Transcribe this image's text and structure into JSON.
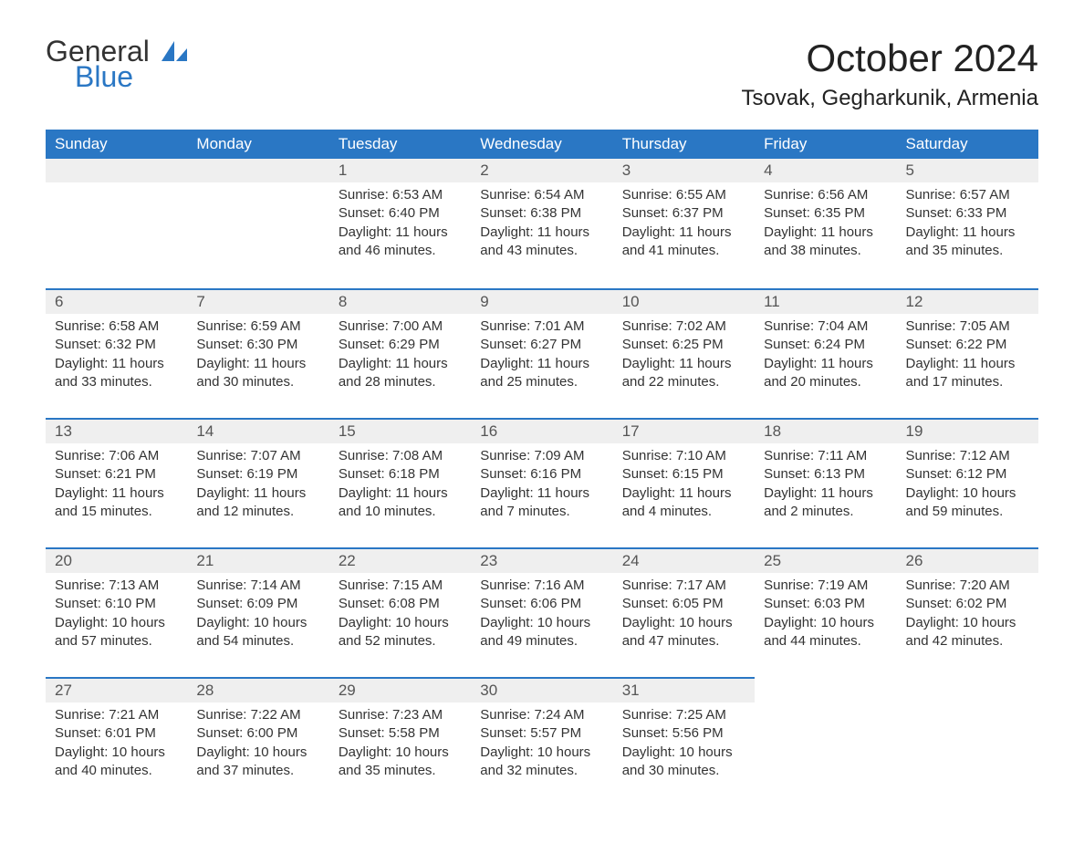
{
  "logo": {
    "text1": "General",
    "text2": "Blue",
    "icon_color": "#2a77c4"
  },
  "title": "October 2024",
  "location": "Tsovak, Gegharkunik, Armenia",
  "colors": {
    "header_bg": "#2a77c4",
    "header_fg": "#ffffff",
    "daynum_bg": "#efefef",
    "row_border": "#2a77c4",
    "body_fg": "#333333",
    "page_bg": "#ffffff"
  },
  "weekdays": [
    "Sunday",
    "Monday",
    "Tuesday",
    "Wednesday",
    "Thursday",
    "Friday",
    "Saturday"
  ],
  "weeks": [
    [
      null,
      null,
      {
        "n": "1",
        "sunrise": "6:53 AM",
        "sunset": "6:40 PM",
        "daylight": "11 hours and 46 minutes."
      },
      {
        "n": "2",
        "sunrise": "6:54 AM",
        "sunset": "6:38 PM",
        "daylight": "11 hours and 43 minutes."
      },
      {
        "n": "3",
        "sunrise": "6:55 AM",
        "sunset": "6:37 PM",
        "daylight": "11 hours and 41 minutes."
      },
      {
        "n": "4",
        "sunrise": "6:56 AM",
        "sunset": "6:35 PM",
        "daylight": "11 hours and 38 minutes."
      },
      {
        "n": "5",
        "sunrise": "6:57 AM",
        "sunset": "6:33 PM",
        "daylight": "11 hours and 35 minutes."
      }
    ],
    [
      {
        "n": "6",
        "sunrise": "6:58 AM",
        "sunset": "6:32 PM",
        "daylight": "11 hours and 33 minutes."
      },
      {
        "n": "7",
        "sunrise": "6:59 AM",
        "sunset": "6:30 PM",
        "daylight": "11 hours and 30 minutes."
      },
      {
        "n": "8",
        "sunrise": "7:00 AM",
        "sunset": "6:29 PM",
        "daylight": "11 hours and 28 minutes."
      },
      {
        "n": "9",
        "sunrise": "7:01 AM",
        "sunset": "6:27 PM",
        "daylight": "11 hours and 25 minutes."
      },
      {
        "n": "10",
        "sunrise": "7:02 AM",
        "sunset": "6:25 PM",
        "daylight": "11 hours and 22 minutes."
      },
      {
        "n": "11",
        "sunrise": "7:04 AM",
        "sunset": "6:24 PM",
        "daylight": "11 hours and 20 minutes."
      },
      {
        "n": "12",
        "sunrise": "7:05 AM",
        "sunset": "6:22 PM",
        "daylight": "11 hours and 17 minutes."
      }
    ],
    [
      {
        "n": "13",
        "sunrise": "7:06 AM",
        "sunset": "6:21 PM",
        "daylight": "11 hours and 15 minutes."
      },
      {
        "n": "14",
        "sunrise": "7:07 AM",
        "sunset": "6:19 PM",
        "daylight": "11 hours and 12 minutes."
      },
      {
        "n": "15",
        "sunrise": "7:08 AM",
        "sunset": "6:18 PM",
        "daylight": "11 hours and 10 minutes."
      },
      {
        "n": "16",
        "sunrise": "7:09 AM",
        "sunset": "6:16 PM",
        "daylight": "11 hours and 7 minutes."
      },
      {
        "n": "17",
        "sunrise": "7:10 AM",
        "sunset": "6:15 PM",
        "daylight": "11 hours and 4 minutes."
      },
      {
        "n": "18",
        "sunrise": "7:11 AM",
        "sunset": "6:13 PM",
        "daylight": "11 hours and 2 minutes."
      },
      {
        "n": "19",
        "sunrise": "7:12 AM",
        "sunset": "6:12 PM",
        "daylight": "10 hours and 59 minutes."
      }
    ],
    [
      {
        "n": "20",
        "sunrise": "7:13 AM",
        "sunset": "6:10 PM",
        "daylight": "10 hours and 57 minutes."
      },
      {
        "n": "21",
        "sunrise": "7:14 AM",
        "sunset": "6:09 PM",
        "daylight": "10 hours and 54 minutes."
      },
      {
        "n": "22",
        "sunrise": "7:15 AM",
        "sunset": "6:08 PM",
        "daylight": "10 hours and 52 minutes."
      },
      {
        "n": "23",
        "sunrise": "7:16 AM",
        "sunset": "6:06 PM",
        "daylight": "10 hours and 49 minutes."
      },
      {
        "n": "24",
        "sunrise": "7:17 AM",
        "sunset": "6:05 PM",
        "daylight": "10 hours and 47 minutes."
      },
      {
        "n": "25",
        "sunrise": "7:19 AM",
        "sunset": "6:03 PM",
        "daylight": "10 hours and 44 minutes."
      },
      {
        "n": "26",
        "sunrise": "7:20 AM",
        "sunset": "6:02 PM",
        "daylight": "10 hours and 42 minutes."
      }
    ],
    [
      {
        "n": "27",
        "sunrise": "7:21 AM",
        "sunset": "6:01 PM",
        "daylight": "10 hours and 40 minutes."
      },
      {
        "n": "28",
        "sunrise": "7:22 AM",
        "sunset": "6:00 PM",
        "daylight": "10 hours and 37 minutes."
      },
      {
        "n": "29",
        "sunrise": "7:23 AM",
        "sunset": "5:58 PM",
        "daylight": "10 hours and 35 minutes."
      },
      {
        "n": "30",
        "sunrise": "7:24 AM",
        "sunset": "5:57 PM",
        "daylight": "10 hours and 32 minutes."
      },
      {
        "n": "31",
        "sunrise": "7:25 AM",
        "sunset": "5:56 PM",
        "daylight": "10 hours and 30 minutes."
      },
      null,
      null
    ]
  ],
  "labels": {
    "sunrise": "Sunrise:",
    "sunset": "Sunset:",
    "daylight": "Daylight:"
  }
}
